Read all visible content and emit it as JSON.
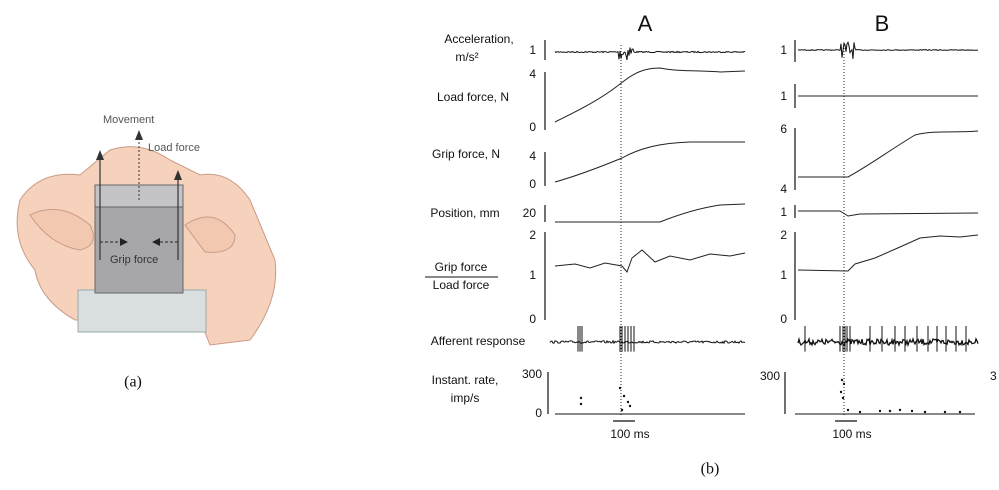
{
  "panel_a": {
    "movement": "Movement",
    "load_force": "Load force",
    "grip_force": "Grip force",
    "caption": "(a)"
  },
  "panel_b": {
    "columns": [
      "A",
      "B"
    ],
    "row_labels": {
      "acceleration": [
        "Acceleration,",
        "m/s²"
      ],
      "load_force": "Load force, N",
      "grip_force": "Grip force, N",
      "position": "Position, mm",
      "ratio": [
        "Grip force",
        "Load force"
      ],
      "afferent": "Afferent response",
      "rate": [
        "Instant. rate,",
        "imp/s"
      ]
    },
    "scale_a": {
      "acceleration": "1",
      "load_force": [
        "4",
        "0"
      ],
      "grip_force": [
        "4",
        "0"
      ],
      "position": "20",
      "ratio": [
        "2",
        "1",
        "0"
      ],
      "rate": [
        "300",
        "0"
      ],
      "time_bar": "100 ms"
    },
    "scale_b": {
      "acceleration": "1",
      "load_force": "1",
      "grip_force": [
        "6",
        "4"
      ],
      "position": "1",
      "ratio": [
        "2",
        "1",
        "0"
      ],
      "rate": "300",
      "time_bar": "100 ms",
      "cut_off": "3"
    },
    "caption": "(b)"
  }
}
